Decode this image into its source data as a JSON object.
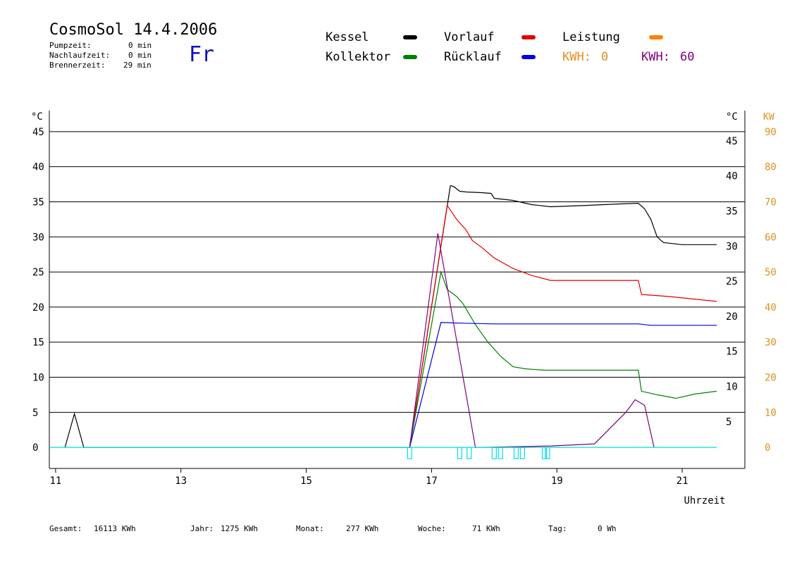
{
  "header": {
    "title": "CosmoSol 14.4.2006",
    "day": "Fr",
    "stats": [
      {
        "label": "Pumpzeit:",
        "value": "0 min"
      },
      {
        "label": "Nachlaufzeit:",
        "value": "0 min"
      },
      {
        "label": "Brennerzeit:",
        "value": "29 min"
      }
    ]
  },
  "legend": {
    "kessel": {
      "label": "Kessel",
      "color": "#000000"
    },
    "vorlauf": {
      "label": "Vorlauf",
      "color": "#e00000"
    },
    "leistung": {
      "label": "Leistung",
      "color": "#ff8000"
    },
    "kollektor": {
      "label": "Kollektor",
      "color": "#008000"
    },
    "ruecklauf": {
      "label": "Rücklauf",
      "color": "#0000e0"
    },
    "kwh1": {
      "label": "KWH:",
      "value": "0",
      "color": "#e09020"
    },
    "kwh2": {
      "label": "KWH:",
      "value": "60",
      "color": "#800080"
    }
  },
  "footer": {
    "gesamt": {
      "label": "Gesamt:",
      "value": "16113 KWh"
    },
    "jahr": {
      "label": "Jahr:",
      "value": "1275 KWh"
    },
    "monat": {
      "label": "Monat:",
      "value": "277 KWh"
    },
    "woche": {
      "label": "Woche:",
      "value": "71 KWh"
    },
    "tag": {
      "label": "Tag:",
      "value": "0 Wh"
    }
  },
  "chart_data": {
    "type": "line",
    "xlabel": "Uhrzeit",
    "ylabel_left": "°C",
    "ylabel_right": "°C",
    "ylabel_kw": "KW",
    "xlim": [
      10.9,
      22.0
    ],
    "ylim": [
      -3,
      48
    ],
    "x_ticks": [
      11,
      13,
      15,
      17,
      19,
      21
    ],
    "y_ticks": [
      0,
      5,
      10,
      15,
      20,
      25,
      30,
      35,
      40,
      45
    ],
    "y_ticks_right": [
      5,
      10,
      15,
      20,
      25,
      30,
      35,
      40,
      45
    ],
    "kw_ticks": [
      0,
      10,
      20,
      30,
      40,
      50,
      60,
      70,
      80,
      90
    ],
    "grid": true,
    "series": [
      {
        "name": "Kessel",
        "color": "#000000",
        "x": [
          11.15,
          11.3,
          11.45,
          16.65,
          17.3,
          17.35,
          17.45,
          17.55,
          17.8,
          17.95,
          18.0,
          18.3,
          18.6,
          18.9,
          19.5,
          20.0,
          20.3,
          20.4,
          20.5,
          20.6,
          20.7,
          21.0,
          21.55
        ],
        "y": [
          0,
          4.8,
          0,
          0,
          37.3,
          37.2,
          36.5,
          36.4,
          36.3,
          36.2,
          35.5,
          35.2,
          34.6,
          34.3,
          34.5,
          34.7,
          34.8,
          34.0,
          32.5,
          30.0,
          29.2,
          28.9,
          28.9
        ]
      },
      {
        "name": "Vorlauf",
        "color": "#e00000",
        "x": [
          16.65,
          17.25,
          17.4,
          17.55,
          17.65,
          17.8,
          18.0,
          18.3,
          18.6,
          18.9,
          19.5,
          20.0,
          20.3,
          20.35,
          20.8,
          21.55
        ],
        "y": [
          0,
          34.5,
          32.5,
          31.0,
          29.5,
          28.5,
          27.0,
          25.5,
          24.5,
          23.8,
          23.8,
          23.8,
          23.8,
          21.8,
          21.5,
          20.8
        ]
      },
      {
        "name": "Kollektor",
        "color": "#008000",
        "x": [
          16.65,
          17.15,
          17.25,
          17.4,
          17.5,
          17.7,
          17.9,
          18.1,
          18.3,
          18.5,
          18.8,
          19.0,
          19.5,
          20.0,
          20.3,
          20.35,
          20.6,
          20.9,
          21.2,
          21.55
        ],
        "y": [
          0,
          25.0,
          22.5,
          21.5,
          20.5,
          17.5,
          15.0,
          13.0,
          11.5,
          11.2,
          11.0,
          11.0,
          11.0,
          11.0,
          11.0,
          8.0,
          7.5,
          7.0,
          7.6,
          8.0
        ]
      },
      {
        "name": "Rücklauf",
        "color": "#0000e0",
        "x": [
          16.65,
          17.15,
          17.5,
          18.0,
          18.5,
          19.0,
          19.5,
          20.0,
          20.3,
          20.5,
          21.55
        ],
        "y": [
          0,
          17.8,
          17.7,
          17.6,
          17.6,
          17.6,
          17.6,
          17.6,
          17.6,
          17.4,
          17.4
        ]
      },
      {
        "name": "KWH: 60",
        "color": "#800080",
        "x": [
          16.65,
          17.1,
          17.7,
          17.8,
          18.9,
          19.6,
          20.1,
          20.25,
          20.4,
          20.55
        ],
        "y": [
          0,
          30.5,
          0,
          0,
          0.2,
          0.5,
          5.0,
          6.8,
          6.0,
          0
        ]
      },
      {
        "name": "Pumpe",
        "color": "#00e0e0",
        "x": [
          10.9,
          21.55
        ],
        "y": [
          0,
          0
        ]
      }
    ]
  }
}
